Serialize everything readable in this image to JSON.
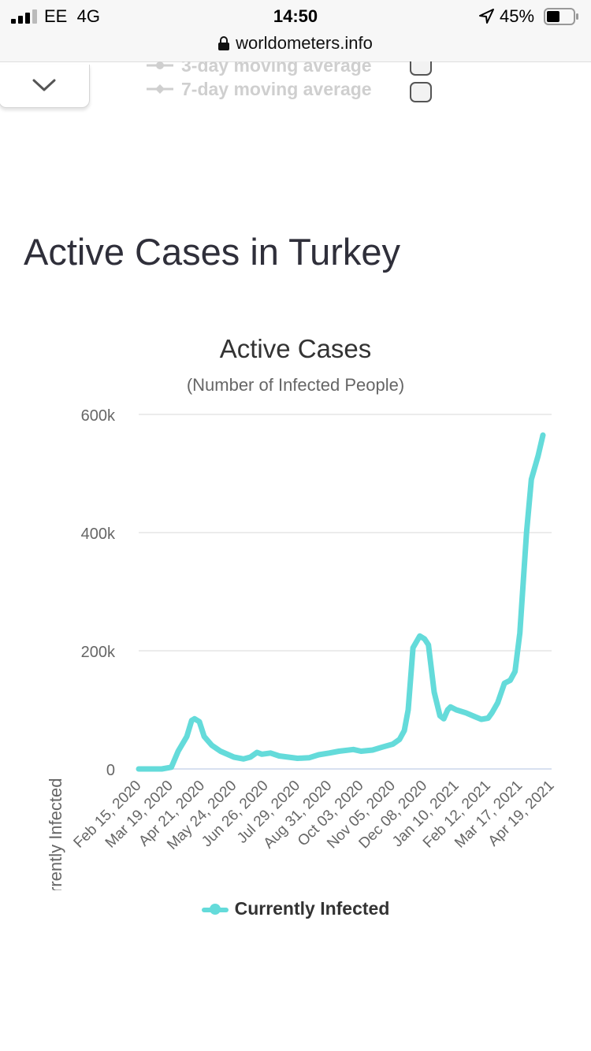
{
  "status_bar": {
    "carrier": "EE",
    "network": "4G",
    "time": "14:50",
    "battery": "45%",
    "url": "worldometers.info"
  },
  "legend_prev": {
    "item_1": "3-day moving average",
    "item_2": "7-day moving average"
  },
  "section": {
    "title": "Active Cases in Turkey"
  },
  "colors": {
    "series": "#64dbda",
    "grid": "#e6e6e6",
    "axis_text": "#666666"
  },
  "chart_data": {
    "type": "line",
    "title": "Active Cases",
    "subtitle": "(Number of Infected People)",
    "ylabel": "Total Coronavirus Currently Infected",
    "xlabel": "",
    "ylim": [
      0,
      600000
    ],
    "y_ticks": [
      0,
      200000,
      400000,
      600000
    ],
    "y_tick_labels": [
      "0",
      "200k",
      "400k",
      "600k"
    ],
    "x_tick_labels": [
      "Feb 15, 2020",
      "Mar 19, 2020",
      "Apr 21, 2020",
      "May 24, 2020",
      "Jun 26, 2020",
      "Jul 29, 2020",
      "Aug 31, 2020",
      "Oct 03, 2020",
      "Nov 05, 2020",
      "Dec 08, 2020",
      "Jan 10, 2021",
      "Feb 12, 2021",
      "Mar 17, 2021",
      "Apr 19, 2021"
    ],
    "grid": true,
    "legend_position": "bottom-center",
    "series": [
      {
        "name": "Currently Infected",
        "points": [
          [
            "2020-02-15",
            0
          ],
          [
            "2020-03-10",
            0
          ],
          [
            "2020-03-20",
            3000
          ],
          [
            "2020-03-27",
            30000
          ],
          [
            "2020-04-05",
            55000
          ],
          [
            "2020-04-10",
            82000
          ],
          [
            "2020-04-13",
            85000
          ],
          [
            "2020-04-18",
            80000
          ],
          [
            "2020-04-23",
            55000
          ],
          [
            "2020-05-01",
            40000
          ],
          [
            "2020-05-10",
            30000
          ],
          [
            "2020-05-24",
            20000
          ],
          [
            "2020-06-03",
            17000
          ],
          [
            "2020-06-10",
            20000
          ],
          [
            "2020-06-17",
            28000
          ],
          [
            "2020-06-22",
            25000
          ],
          [
            "2020-07-01",
            27000
          ],
          [
            "2020-07-10",
            22000
          ],
          [
            "2020-07-29",
            18000
          ],
          [
            "2020-08-10",
            19000
          ],
          [
            "2020-08-20",
            24000
          ],
          [
            "2020-08-31",
            27000
          ],
          [
            "2020-09-10",
            30000
          ],
          [
            "2020-09-25",
            33000
          ],
          [
            "2020-10-03",
            30000
          ],
          [
            "2020-10-15",
            32000
          ],
          [
            "2020-10-25",
            37000
          ],
          [
            "2020-11-05",
            42000
          ],
          [
            "2020-11-12",
            50000
          ],
          [
            "2020-11-17",
            65000
          ],
          [
            "2020-11-21",
            100000
          ],
          [
            "2020-11-26",
            205000
          ],
          [
            "2020-12-03",
            225000
          ],
          [
            "2020-12-08",
            220000
          ],
          [
            "2020-12-12",
            210000
          ],
          [
            "2020-12-18",
            130000
          ],
          [
            "2020-12-24",
            90000
          ],
          [
            "2020-12-28",
            85000
          ],
          [
            "2021-01-01",
            100000
          ],
          [
            "2021-01-04",
            105000
          ],
          [
            "2021-01-10",
            100000
          ],
          [
            "2021-01-20",
            95000
          ],
          [
            "2021-01-30",
            88000
          ],
          [
            "2021-02-05",
            84000
          ],
          [
            "2021-02-12",
            86000
          ],
          [
            "2021-02-16",
            95000
          ],
          [
            "2021-02-22",
            112000
          ],
          [
            "2021-03-01",
            145000
          ],
          [
            "2021-03-07",
            150000
          ],
          [
            "2021-03-12",
            165000
          ],
          [
            "2021-03-17",
            230000
          ],
          [
            "2021-03-24",
            400000
          ],
          [
            "2021-03-29",
            490000
          ],
          [
            "2021-04-05",
            530000
          ],
          [
            "2021-04-10",
            565000
          ]
        ]
      }
    ]
  }
}
